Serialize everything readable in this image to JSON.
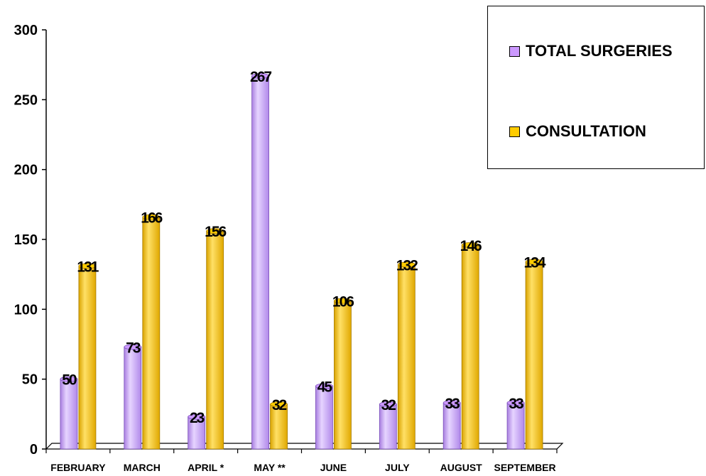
{
  "chart_data": {
    "type": "bar",
    "categories": [
      "FEBRUARY",
      "MARCH",
      "APRIL *",
      "MAY **",
      "JUNE",
      "JULY",
      "AUGUST",
      "SEPTEMBER"
    ],
    "series": [
      {
        "name": "TOTAL SURGERIES",
        "values": [
          50,
          73,
          23,
          267,
          45,
          32,
          33,
          33
        ],
        "color": "#cc99ff"
      },
      {
        "name": "CONSULTATION",
        "values": [
          131,
          166,
          156,
          32,
          106,
          132,
          146,
          134
        ],
        "color": "#ffcc00"
      }
    ],
    "ylim": [
      0,
      300
    ],
    "yticks": [
      "0",
      "50",
      "100",
      "150",
      "200",
      "250",
      "300"
    ],
    "title": "",
    "xlabel": "",
    "ylabel": "",
    "grid": false,
    "legend_position": "top-right"
  }
}
